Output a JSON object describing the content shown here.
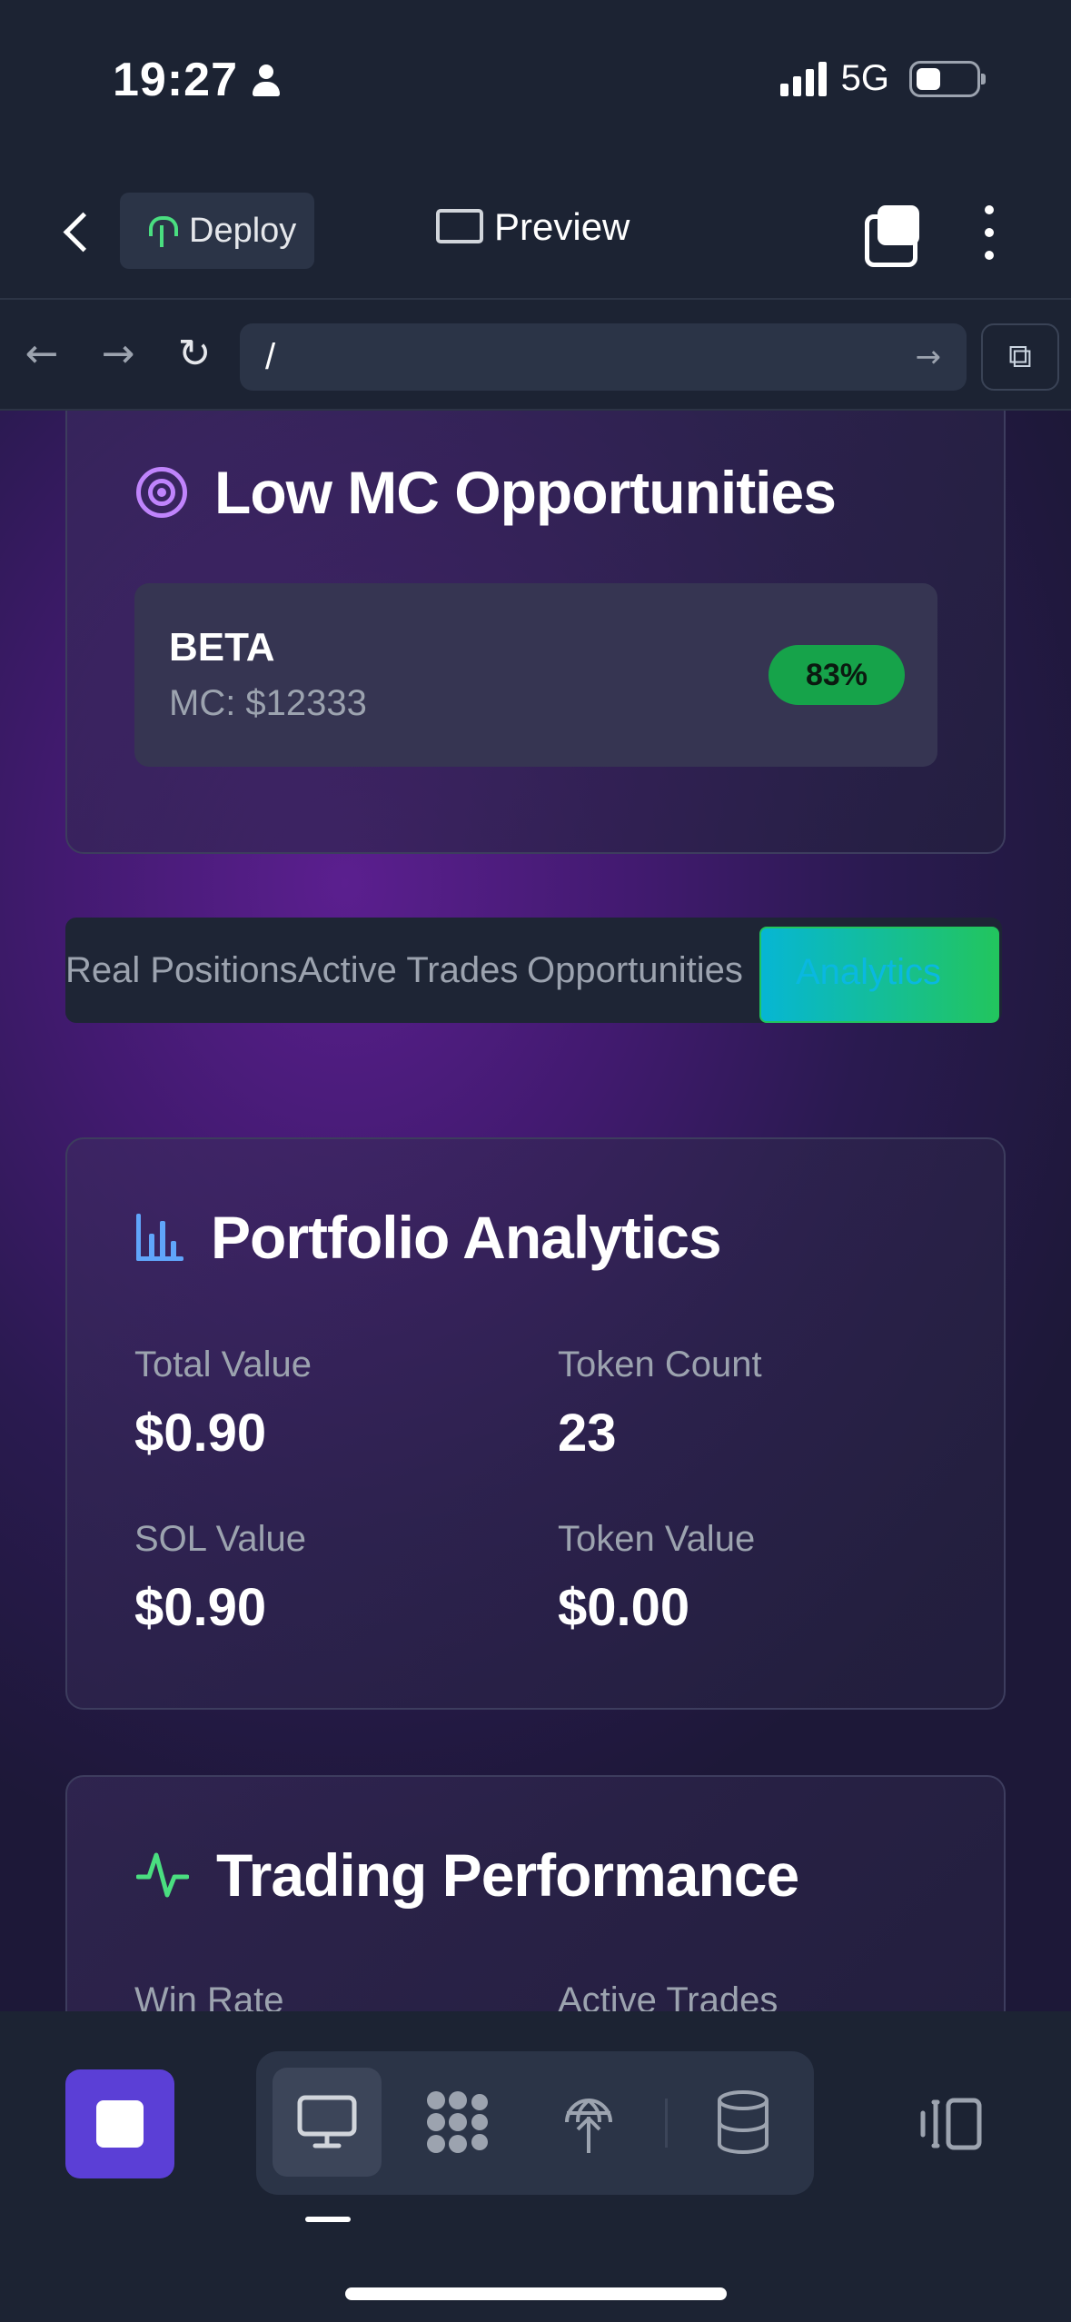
{
  "status_bar": {
    "time": "19:27",
    "network": "5G"
  },
  "header": {
    "deploy_label": "Deploy",
    "preview_label": "Preview"
  },
  "browser": {
    "url": "/"
  },
  "opportunities": {
    "title": "Low MC Opportunities",
    "items": [
      {
        "symbol": "BETA",
        "mc": "MC: $12333",
        "score": "83%"
      }
    ]
  },
  "tabs": [
    {
      "label": "Real Positions",
      "active": false
    },
    {
      "label": "Active Trades",
      "active": false
    },
    {
      "label": "Opportunities",
      "active": false
    },
    {
      "label": "Analytics",
      "active": true
    }
  ],
  "analytics": {
    "title": "Portfolio Analytics",
    "stats": [
      {
        "label": "Total Value",
        "value": "$0.90"
      },
      {
        "label": "Token Count",
        "value": "23"
      },
      {
        "label": "SOL Value",
        "value": "$0.90"
      },
      {
        "label": "Token Value",
        "value": "$0.00"
      }
    ]
  },
  "performance": {
    "title": "Trading Performance",
    "stats": [
      {
        "label": "Win Rate"
      },
      {
        "label": "Active Trades"
      }
    ]
  },
  "colors": {
    "accent_purple": "#5b3fd6",
    "badge_green": "#16a34a",
    "active_tab_gradient_start": "#06b6d4",
    "active_tab_gradient_end": "#22c55e",
    "analytics_icon": "#60a5fa",
    "performance_icon": "#4ade80",
    "target_icon": "#c084fc"
  },
  "icons": [
    "person-icon",
    "signal-icon",
    "battery-icon",
    "back-icon",
    "deploy-icon",
    "monitor-icon",
    "tabs-icon",
    "more-icon",
    "arrow-left-icon",
    "arrow-right-icon",
    "reload-icon",
    "open-external-icon",
    "target-icon",
    "bar-chart-icon",
    "activity-icon",
    "stop-icon",
    "packages-icon",
    "deploy-globe-icon",
    "database-icon",
    "side-panel-icon"
  ]
}
